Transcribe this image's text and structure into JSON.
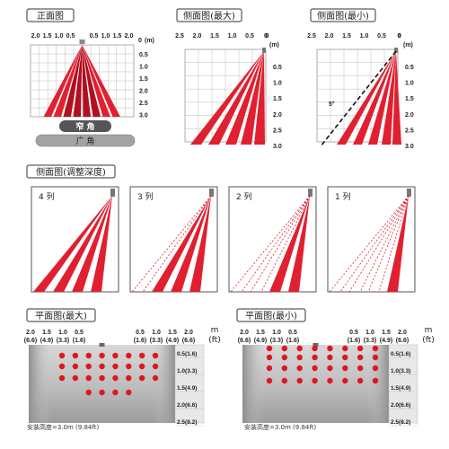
{
  "colors": {
    "beam_red": "#e02030",
    "dark_red": "#b01020",
    "grid": "#bbbbbb",
    "gray_pill": "#9a9a9a",
    "dark_pill": "#555555",
    "dot_red": "#e0161e"
  },
  "panels": {
    "front": {
      "title": "正面图",
      "x_ticks": [
        "2.0",
        "1.5",
        "1.0",
        "0.5",
        "0",
        "0.5",
        "1.0",
        "1.5",
        "2.0"
      ],
      "unit": "(m)",
      "zero_label": "0",
      "y_ticks": [
        "0.5",
        "1.0",
        "1.5",
        "2.0",
        "2.5",
        "3.0"
      ],
      "narrow_label": "窄 角",
      "wide_label": "广 角"
    },
    "side_max": {
      "title": "侧面图(最大)",
      "x_ticks": [
        "2.5",
        "2.0",
        "1.5",
        "1.0",
        "0.5",
        "0"
      ],
      "unit": "(m)",
      "zero_label": "0",
      "y_ticks": [
        "0.5",
        "1.0",
        "1.5",
        "2.0",
        "2.5",
        "3.0"
      ]
    },
    "side_min": {
      "title": "侧面图(最小)",
      "x_ticks": [
        "2.5",
        "2.0",
        "1.5",
        "1.0",
        "0.5",
        "0"
      ],
      "unit": "(m)",
      "zero_label": "0",
      "y_ticks": [
        "0.5",
        "1.0",
        "1.5",
        "2.0",
        "2.5",
        "3.0"
      ],
      "angle_label": "5°"
    },
    "depth": {
      "title": "侧面图(调整深度)",
      "boxes": [
        {
          "label": "4 列",
          "rows": 4
        },
        {
          "label": "3 列",
          "rows": 3
        },
        {
          "label": "2 列",
          "rows": 2
        },
        {
          "label": "1 列",
          "rows": 1
        }
      ]
    },
    "plan_max": {
      "title": "平面图(最大)",
      "x_ticks_m": [
        "2.0",
        "1.5",
        "1.0",
        "0.5",
        "0.5",
        "1.0",
        "1.5",
        "2.0"
      ],
      "x_ticks_ft": [
        "(6.6)",
        "(4.9)",
        "(3.3)",
        "(1.6)",
        "(1.6)",
        "(3.3)",
        "(4.9)",
        "(6.6)"
      ],
      "unit_m": "m",
      "unit_ft": "(ft)",
      "row_labels": [
        "0.5(1.6)",
        "1.0(3.3)",
        "1.5(4.9)",
        "2.0(6.6)",
        "2.5(8.2)"
      ],
      "footer": "安装高度=3.0m (9.84ft)",
      "dot_rows": [
        [
          1,
          1,
          1,
          1,
          1,
          1,
          1,
          1
        ],
        [
          1,
          1,
          1,
          1,
          1,
          1,
          1,
          1
        ],
        [
          1,
          1,
          1,
          1,
          1,
          1,
          1,
          1
        ],
        [
          0,
          0,
          1,
          1,
          1,
          1,
          0,
          0
        ]
      ]
    },
    "plan_min": {
      "title": "平面图(最小)",
      "x_ticks_m": [
        "2.0",
        "1.5",
        "1.0",
        "0.5",
        "0.5",
        "1.0",
        "1.5",
        "2.0"
      ],
      "x_ticks_ft": [
        "(6.6)",
        "(4.9)",
        "(3.3)",
        "(1.6)",
        "(1.6)",
        "(3.3)",
        "(4.9)",
        "(6.6)"
      ],
      "unit_m": "m",
      "unit_ft": "(ft)",
      "row_labels": [
        "0.5(1.6)",
        "1.0(3.3)",
        "1.5(4.9)",
        "2.0(6.6)",
        "2.5(8.2)"
      ],
      "footer": "安装高度=3.0m (9.84ft)",
      "dot_rows": [
        [
          1,
          1,
          1,
          1,
          1,
          1,
          1,
          1
        ],
        [
          1,
          1,
          1,
          1,
          1,
          1,
          1,
          1
        ],
        [
          1,
          1,
          1,
          1,
          1,
          1,
          1,
          1
        ],
        [
          1,
          1,
          1,
          1,
          1,
          1,
          1,
          1
        ]
      ]
    }
  }
}
